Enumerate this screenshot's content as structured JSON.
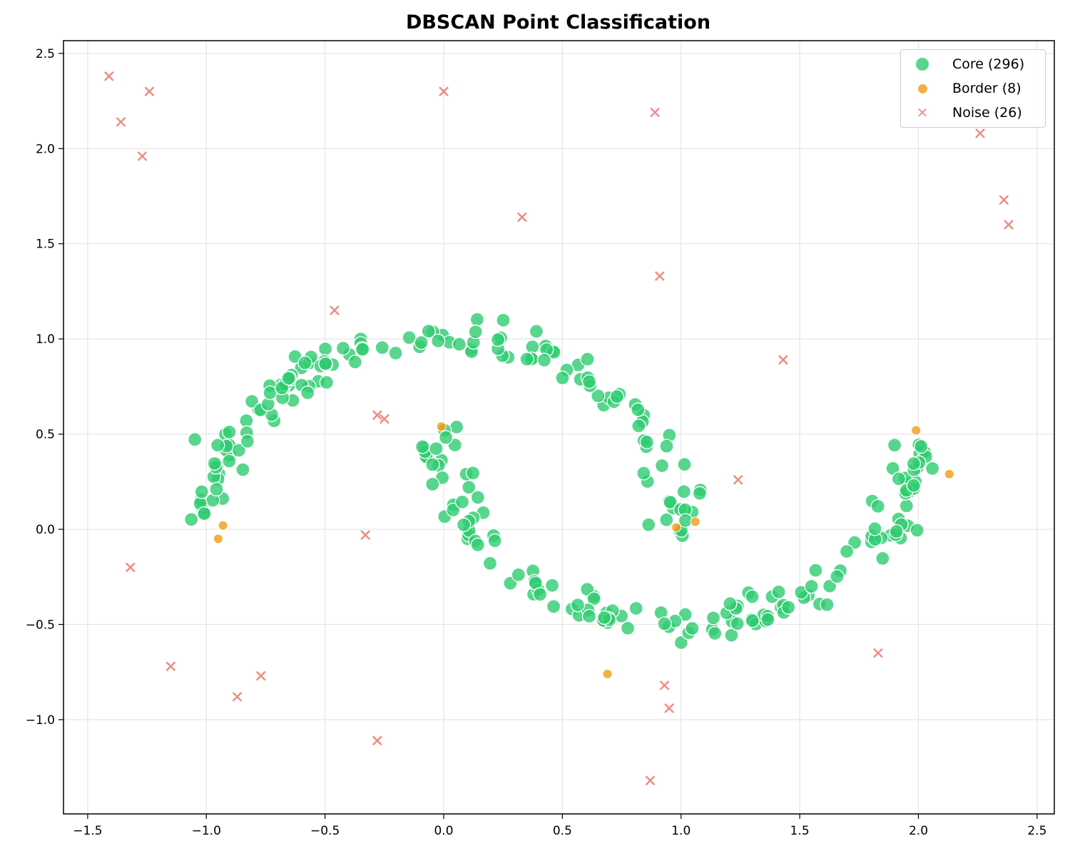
{
  "chart_data": {
    "type": "scatter",
    "title": "DBSCAN Point Classification",
    "xlabel": "",
    "ylabel": "",
    "xlim": [
      -1.6,
      2.58
    ],
    "ylim": [
      -1.5,
      2.57
    ],
    "grid": true,
    "legend_position": "upper right",
    "x_ticks": [
      "−1.5",
      "−1.0",
      "−0.5",
      "0.0",
      "0.5",
      "1.0",
      "1.5",
      "2.0",
      "2.5"
    ],
    "x_tick_values": [
      -1.5,
      -1.0,
      -0.5,
      0.0,
      0.5,
      1.0,
      1.5,
      2.0,
      2.5
    ],
    "y_ticks": [
      "−1.0",
      "−0.5",
      "0.0",
      "0.5",
      "1.0",
      "1.5",
      "2.0",
      "2.5"
    ],
    "y_tick_values": [
      -1.0,
      -0.5,
      0.0,
      0.5,
      1.0,
      1.5,
      2.0,
      2.5
    ],
    "series": [
      {
        "name": "Core (296)",
        "color": "#2ecc71",
        "marker": "circle",
        "count": 296,
        "description": "two interleaving half-moon clusters",
        "upper_moon": {
          "x_range": [
            -1.1,
            1.05
          ],
          "y_range": [
            0.0,
            1.1
          ]
        },
        "lower_moon": {
          "x_range": [
            -0.05,
            2.1
          ],
          "y_range": [
            -0.56,
            0.5
          ]
        }
      },
      {
        "name": "Border (8)",
        "color": "#f39c12",
        "marker": "circle-small",
        "count": 8,
        "points": [
          [
            -0.93,
            0.02
          ],
          [
            -0.95,
            -0.05
          ],
          [
            -0.01,
            0.54
          ],
          [
            0.98,
            0.01
          ],
          [
            1.06,
            0.04
          ],
          [
            1.99,
            0.52
          ],
          [
            2.13,
            0.29
          ],
          [
            0.69,
            -0.76
          ]
        ]
      },
      {
        "name": "Noise (26)",
        "color": "#e74c3c",
        "marker": "x",
        "count": 26,
        "points": [
          [
            -1.41,
            2.38
          ],
          [
            -1.36,
            2.14
          ],
          [
            -1.24,
            2.3
          ],
          [
            -1.27,
            1.96
          ],
          [
            0.0,
            2.3
          ],
          [
            0.89,
            2.19
          ],
          [
            0.33,
            1.64
          ],
          [
            0.91,
            1.33
          ],
          [
            -0.46,
            1.15
          ],
          [
            1.43,
            0.89
          ],
          [
            -0.28,
            0.6
          ],
          [
            -0.25,
            0.58
          ],
          [
            1.24,
            0.26
          ],
          [
            -0.33,
            -0.03
          ],
          [
            -1.32,
            -0.2
          ],
          [
            -1.15,
            -0.72
          ],
          [
            -0.77,
            -0.77
          ],
          [
            -0.87,
            -0.88
          ],
          [
            -0.28,
            -1.11
          ],
          [
            0.93,
            -0.82
          ],
          [
            0.95,
            -0.94
          ],
          [
            0.87,
            -1.32
          ],
          [
            1.83,
            -0.65
          ],
          [
            2.26,
            2.08
          ],
          [
            2.36,
            1.73
          ],
          [
            2.38,
            1.6
          ]
        ]
      }
    ]
  },
  "legend": {
    "items": [
      {
        "label": "Core (296)",
        "color": "#2ecc71"
      },
      {
        "label": "Border (8)",
        "color": "#f39c12"
      },
      {
        "label": "Noise (26)",
        "color": "#e74c3c"
      }
    ]
  }
}
